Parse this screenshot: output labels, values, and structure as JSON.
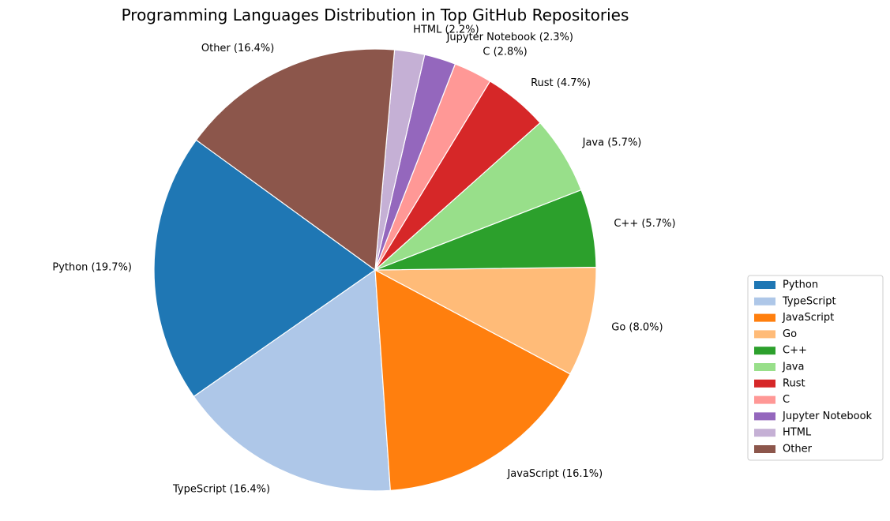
{
  "chart_data": {
    "type": "pie",
    "title": "Programming Languages Distribution in Top GitHub Repositories",
    "slices": [
      {
        "name": "Python",
        "label": "Python (19.7%)",
        "value": 19.7,
        "color": "#1f77b4"
      },
      {
        "name": "TypeScript",
        "label": "TypeScript (16.4%)",
        "value": 16.4,
        "color": "#aec7e8"
      },
      {
        "name": "JavaScript",
        "label": "JavaScript (16.1%)",
        "value": 16.1,
        "color": "#ff7f0e"
      },
      {
        "name": "Go",
        "label": "Go (8.0%)",
        "value": 8.0,
        "color": "#ffbb78"
      },
      {
        "name": "C++",
        "label": "C++ (5.7%)",
        "value": 5.7,
        "color": "#2ca02c"
      },
      {
        "name": "Java",
        "label": "Java (5.7%)",
        "value": 5.7,
        "color": "#98df8a"
      },
      {
        "name": "Rust",
        "label": "Rust (4.7%)",
        "value": 4.7,
        "color": "#d62728"
      },
      {
        "name": "C",
        "label": "C (2.8%)",
        "value": 2.8,
        "color": "#ff9896"
      },
      {
        "name": "Jupyter Notebook",
        "label": "Jupyter Notebook (2.3%)",
        "value": 2.3,
        "color": "#9467bd"
      },
      {
        "name": "HTML",
        "label": "HTML (2.2%)",
        "value": 2.2,
        "color": "#c5b0d5"
      },
      {
        "name": "Other",
        "label": "Other (16.4%)",
        "value": 16.4,
        "color": "#8c564b"
      }
    ],
    "start_angle_deg": 144,
    "direction": "counterclockwise",
    "legend_placement": "center-right"
  }
}
